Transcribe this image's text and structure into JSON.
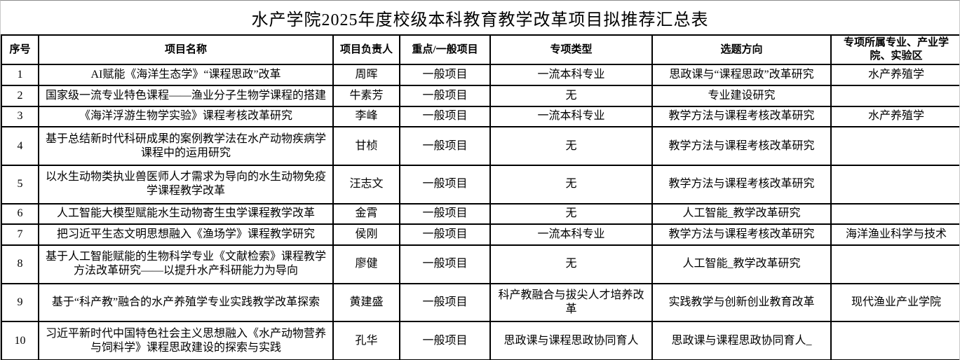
{
  "title": "水产学院2025年度校级本科教育教学改革项目拟推荐汇总表",
  "table": {
    "headers": [
      "序号",
      "项目名称",
      "项目负责人",
      "重点/一般项目",
      "专项类型",
      "选题方向",
      "专项所属专业、产业学院、实验区"
    ],
    "rows": [
      {
        "no": "1",
        "name": "AI赋能《海洋生态学》“课程思政”改革",
        "leader": "周晖",
        "category": "一般项目",
        "special_type": "一流本科专业",
        "direction": "思政课与“课程思政”改革研究",
        "affiliation": "水产养殖学"
      },
      {
        "no": "2",
        "name": "国家级一流专业特色课程——渔业分子生物学课程的搭建",
        "leader": "牛素芳",
        "category": "一般项目",
        "special_type": "无",
        "direction": "专业建设研究",
        "affiliation": ""
      },
      {
        "no": "3",
        "name": "《海洋浮游生物学实验》课程考核改革研究",
        "leader": "李峰",
        "category": "一般项目",
        "special_type": "一流本科专业",
        "direction": "教学方法与课程考核改革研究",
        "affiliation": "水产养殖学"
      },
      {
        "no": "4",
        "name": "基于总结新时代科研成果的案例教学法在水产动物疾病学课程中的运用研究",
        "leader": "甘桢",
        "category": "一般项目",
        "special_type": "无",
        "direction": "教学方法与课程考核改革研究",
        "affiliation": ""
      },
      {
        "no": "5",
        "name": "以水生动物类执业兽医师人才需求为导向的水生动物免疫学课程教学改革",
        "leader": "汪志文",
        "category": "一般项目",
        "special_type": "无",
        "direction": "教学方法与课程考核改革研究",
        "affiliation": ""
      },
      {
        "no": "6",
        "name": "人工智能大模型赋能水生动物寄生虫学课程教学改革",
        "leader": "金霄",
        "category": "一般项目",
        "special_type": "无",
        "direction": "人工智能_教学改革研究",
        "affiliation": ""
      },
      {
        "no": "7",
        "name": "把习近平生态文明思想融入《渔场学》课程教学研究",
        "leader": "侯刚",
        "category": "一般项目",
        "special_type": "一流本科专业",
        "direction": "教学方法与课程考核改革研究",
        "affiliation": "海洋渔业科学与技术"
      },
      {
        "no": "8",
        "name": "基于人工智能赋能的生物科学专业《文献检索》课程教学方法改革研究——以提升水产科研能力为导向",
        "leader": "廖健",
        "category": "一般项目",
        "special_type": "无",
        "direction": "人工智能_教学改革研究",
        "affiliation": ""
      },
      {
        "no": "9",
        "name": "基于“科产教”融合的水产养殖学专业实践教学改革探索",
        "leader": "黄建盛",
        "category": "一般项目",
        "special_type": "科产教融合与拔尖人才培养改革",
        "direction": "实践教学与创新创业教育改革",
        "affiliation": "现代渔业产业学院"
      },
      {
        "no": "10",
        "name": "习近平新时代中国特色社会主义思想融入《水产动物营养与饲料学》课程思政建设的探索与实践",
        "leader": "孔华",
        "category": "一般项目",
        "special_type": "思政课与课程思政协同育人",
        "direction": "思政课与课程思政协同育人_",
        "affiliation": ""
      }
    ]
  },
  "colors": {
    "text": "#000000",
    "border": "#000000",
    "background": "#ffffff"
  }
}
